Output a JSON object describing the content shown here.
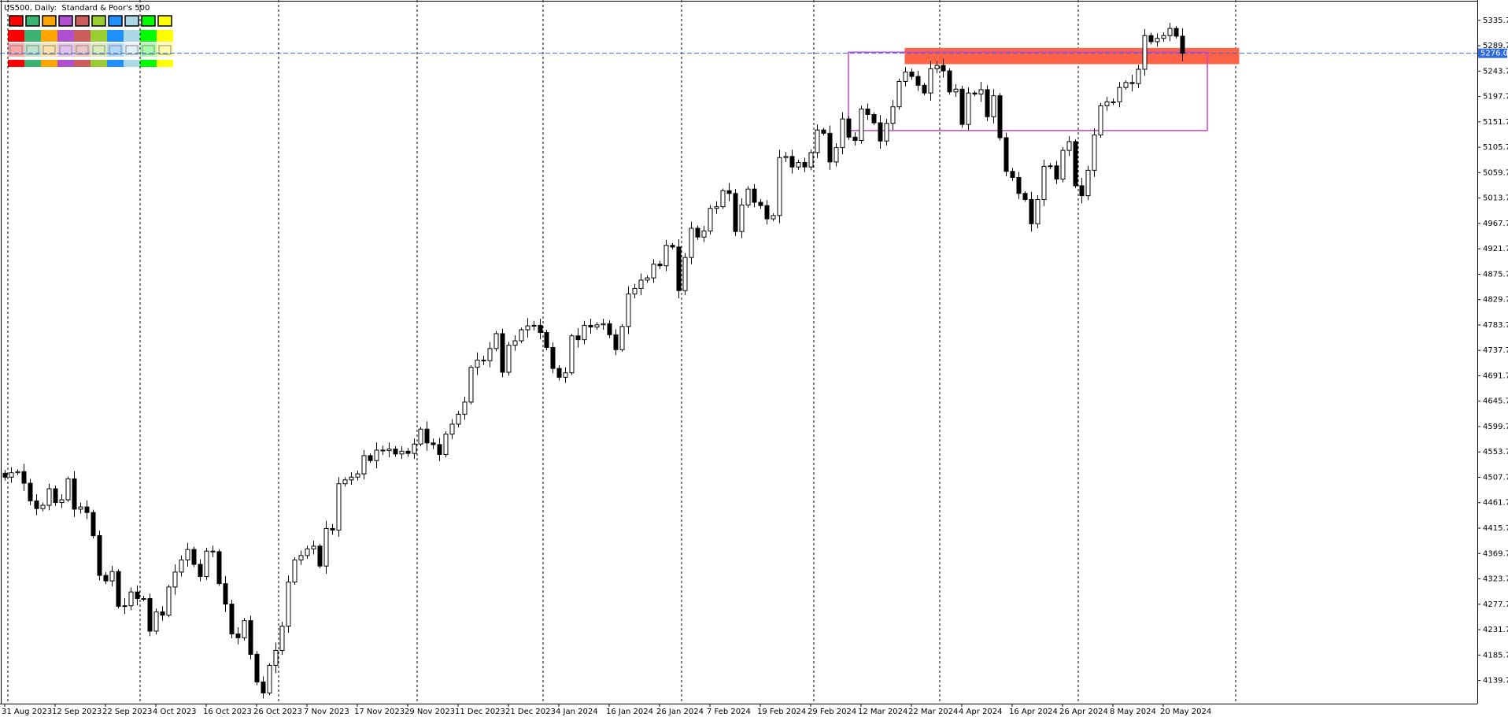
{
  "chart_data": {
    "type": "candlestick",
    "title": "US500, Daily:  Standard & Poor's 500",
    "categories": [
      "31 Aug 2023",
      null,
      null,
      null,
      null,
      null,
      null,
      null,
      "12 Sep 2023",
      null,
      null,
      null,
      null,
      null,
      null,
      null,
      "22 Sep 2023",
      null,
      null,
      null,
      null,
      null,
      null,
      null,
      "4 Oct 2023",
      null,
      null,
      null,
      null,
      null,
      null,
      null,
      "16 Oct 2023",
      null,
      null,
      null,
      null,
      null,
      null,
      null,
      "26 Oct 2023",
      null,
      null,
      null,
      null,
      null,
      null,
      null,
      "7 Nov 2023",
      null,
      null,
      null,
      null,
      null,
      null,
      null,
      "17 Nov 2023",
      null,
      null,
      null,
      null,
      null,
      null,
      null,
      "29 Nov 2023",
      null,
      null,
      null,
      null,
      null,
      null,
      null,
      "11 Dec 2023",
      null,
      null,
      null,
      null,
      null,
      null,
      null,
      "21 Dec 2023",
      null,
      null,
      null,
      null,
      null,
      null,
      null,
      "4 Jan 2024",
      null,
      null,
      null,
      null,
      null,
      null,
      null,
      "16 Jan 2024",
      null,
      null,
      null,
      null,
      null,
      null,
      null,
      "26 Jan 2024",
      null,
      null,
      null,
      null,
      null,
      null,
      null,
      "7 Feb 2024",
      null,
      null,
      null,
      null,
      null,
      null,
      null,
      "19 Feb 2024",
      null,
      null,
      null,
      null,
      null,
      null,
      null,
      "29 Feb 2024",
      null,
      null,
      null,
      null,
      null,
      null,
      null,
      "12 Mar 2024",
      null,
      null,
      null,
      null,
      null,
      null,
      null,
      "22 Mar 2024",
      null,
      null,
      null,
      null,
      null,
      null,
      null,
      "4 Apr 2024",
      null,
      null,
      null,
      null,
      null,
      null,
      null,
      "16 Apr 2024",
      null,
      null,
      null,
      null,
      null,
      null,
      null,
      "26 Apr 2024",
      null,
      null,
      null,
      null,
      null,
      null,
      null,
      "8 May 2024",
      null,
      null,
      null,
      null,
      null,
      null,
      null,
      "20 May 2024",
      null,
      null,
      null
    ],
    "open": [
      4515,
      4508,
      4516,
      4518,
      4497,
      4465,
      4451,
      4457,
      4487,
      4462,
      4467,
      4505,
      4450,
      4454,
      4444,
      4402,
      4330,
      4320,
      4337,
      4274,
      4275,
      4300,
      4288,
      4288,
      4229,
      4264,
      4258,
      4309,
      4336,
      4358,
      4377,
      4350,
      4328,
      4374,
      4373,
      4315,
      4278,
      4224,
      4217,
      4248,
      4187,
      4137,
      4117,
      4167,
      4194,
      4238,
      4318,
      4358,
      4366,
      4378,
      4383,
      4347,
      4415,
      4412,
      4496,
      4503,
      4508,
      4514,
      4547,
      4538,
      4557,
      4556,
      4559,
      4550,
      4555,
      4551,
      4568,
      4595,
      4570,
      4567,
      4549,
      4586,
      4604,
      4622,
      4644,
      4707,
      4720,
      4719,
      4741,
      4768,
      4698,
      4747,
      4755,
      4775,
      4782,
      4783,
      4770,
      4743,
      4705,
      4689,
      4697,
      4764,
      4757,
      4783,
      4780,
      4784,
      4786,
      4766,
      4739,
      4781,
      4840,
      4850,
      4865,
      4869,
      4894,
      4891,
      4928,
      4925,
      4846,
      4906,
      4959,
      4943,
      4954,
      4995,
      4998,
      5027,
      5022,
      4953,
      5001,
      5030,
      5006,
      5000,
      4976,
      4982,
      5087,
      5089,
      5070,
      5078,
      5070,
      5096,
      5137,
      5131,
      5079,
      5105,
      5157,
      5124,
      5118,
      5175,
      5165,
      5150,
      5117,
      5149,
      5179,
      5225,
      5242,
      5234,
      5218,
      5204,
      5248,
      5254,
      5244,
      5206,
      5211,
      5147,
      5204,
      5202,
      5210,
      5161,
      5199,
      5123,
      5062,
      5051,
      5022,
      5011,
      4967,
      5011,
      5071,
      5072,
      5048,
      5100,
      5116,
      5036,
      5018,
      5064,
      5128,
      5181,
      5188,
      5188,
      5214,
      5223,
      5221,
      5247,
      5308,
      5297,
      5303,
      5308,
      5321,
      5307
    ],
    "high": [
      4521,
      4526,
      4522,
      4532,
      4505,
      4477,
      4462,
      4496,
      4493,
      4477,
      4509,
      4519,
      4462,
      4466,
      4449,
      4411,
      4336,
      4347,
      4341,
      4289,
      4308,
      4312,
      4293,
      4297,
      4270,
      4274,
      4313,
      4350,
      4366,
      4389,
      4382,
      4359,
      4380,
      4384,
      4377,
      4329,
      4286,
      4236,
      4253,
      4257,
      4193,
      4147,
      4171,
      4208,
      4246,
      4330,
      4363,
      4375,
      4384,
      4393,
      4387,
      4429,
      4423,
      4508,
      4508,
      4517,
      4520,
      4557,
      4551,
      4571,
      4565,
      4571,
      4564,
      4564,
      4561,
      4578,
      4599,
      4609,
      4578,
      4579,
      4591,
      4613,
      4628,
      4654,
      4711,
      4734,
      4728,
      4753,
      4773,
      4777,
      4753,
      4765,
      4779,
      4796,
      4791,
      4795,
      4775,
      4752,
      4711,
      4707,
      4768,
      4778,
      4791,
      4795,
      4789,
      4795,
      4792,
      4776,
      4785,
      4854,
      4858,
      4877,
      4874,
      4903,
      4900,
      4938,
      4932,
      4939,
      4914,
      4971,
      4964,
      4963,
      5001,
      5008,
      5031,
      5041,
      5030,
      5013,
      5035,
      5039,
      5012,
      5010,
      4986,
      5101,
      5097,
      5101,
      5083,
      5087,
      5102,
      5147,
      5141,
      5145,
      5113,
      5169,
      5162,
      5133,
      5181,
      5185,
      5169,
      5164,
      5157,
      5191,
      5230,
      5251,
      5248,
      5244,
      5222,
      5262,
      5262,
      5266,
      5249,
      5220,
      5217,
      5214,
      5208,
      5224,
      5218,
      5211,
      5204,
      5132,
      5068,
      5061,
      5026,
      5025,
      5019,
      5083,
      5077,
      5081,
      5106,
      5126,
      5120,
      5050,
      5072,
      5140,
      5186,
      5197,
      5194,
      5224,
      5227,
      5237,
      5255,
      5320,
      5313,
      5312,
      5314,
      5331,
      5325,
      5321
    ],
    "low": [
      4502,
      4498,
      4512,
      4483,
      4457,
      4439,
      4446,
      4448,
      4456,
      4452,
      4463,
      4436,
      4442,
      4432,
      4397,
      4321,
      4314,
      4310,
      4270,
      4260,
      4267,
      4276,
      4283,
      4220,
      4223,
      4248,
      4254,
      4295,
      4328,
      4346,
      4345,
      4319,
      4322,
      4363,
      4311,
      4264,
      4216,
      4205,
      4212,
      4178,
      4131,
      4107,
      4113,
      4153,
      4186,
      4226,
      4313,
      4349,
      4360,
      4368,
      4343,
      4333,
      4404,
      4400,
      4491,
      4494,
      4502,
      4504,
      4534,
      4524,
      4548,
      4544,
      4545,
      4541,
      4545,
      4541,
      4564,
      4556,
      4559,
      4537,
      4544,
      4577,
      4598,
      4612,
      4640,
      4693,
      4711,
      4707,
      4736,
      4689,
      4692,
      4737,
      4751,
      4761,
      4774,
      4758,
      4738,
      4696,
      4683,
      4679,
      4693,
      4743,
      4749,
      4768,
      4775,
      4775,
      4760,
      4729,
      4735,
      4767,
      4832,
      4838,
      4860,
      4860,
      4885,
      4881,
      4921,
      4832,
      4838,
      4894,
      4938,
      4934,
      4948,
      4985,
      4994,
      5008,
      4945,
      4941,
      4996,
      4997,
      4994,
      4966,
      4972,
      4968,
      5079,
      5058,
      5065,
      5061,
      5064,
      5086,
      5127,
      5065,
      5071,
      5093,
      5119,
      5109,
      5112,
      5155,
      5146,
      5103,
      5109,
      5137,
      5174,
      5216,
      5228,
      5208,
      5200,
      5190,
      5240,
      5232,
      5201,
      5197,
      5141,
      5137,
      5198,
      5188,
      5153,
      5149,
      5118,
      5053,
      5045,
      5012,
      5007,
      4953,
      4959,
      4999,
      5066,
      5039,
      5042,
      5090,
      5032,
      5004,
      5010,
      5052,
      5123,
      5172,
      5182,
      5178,
      5210,
      5207,
      5213,
      5235,
      5292,
      5288,
      5297,
      5298,
      5303,
      5262
    ],
    "close": [
      4508,
      4516,
      4518,
      4497,
      4465,
      4451,
      4457,
      4487,
      4462,
      4467,
      4505,
      4450,
      4454,
      4444,
      4402,
      4330,
      4320,
      4337,
      4274,
      4275,
      4300,
      4288,
      4288,
      4229,
      4264,
      4258,
      4309,
      4336,
      4358,
      4377,
      4350,
      4328,
      4374,
      4373,
      4315,
      4278,
      4224,
      4217,
      4248,
      4187,
      4137,
      4117,
      4167,
      4194,
      4238,
      4318,
      4358,
      4366,
      4378,
      4383,
      4347,
      4415,
      4412,
      4496,
      4503,
      4508,
      4514,
      4547,
      4538,
      4557,
      4556,
      4559,
      4550,
      4555,
      4551,
      4568,
      4595,
      4570,
      4567,
      4549,
      4586,
      4604,
      4622,
      4644,
      4707,
      4720,
      4719,
      4741,
      4768,
      4698,
      4747,
      4755,
      4775,
      4782,
      4783,
      4770,
      4743,
      4705,
      4689,
      4697,
      4764,
      4757,
      4783,
      4780,
      4784,
      4786,
      4766,
      4739,
      4781,
      4840,
      4850,
      4865,
      4869,
      4894,
      4891,
      4928,
      4925,
      4846,
      4906,
      4959,
      4943,
      4954,
      4995,
      4998,
      5027,
      5022,
      4953,
      5001,
      5030,
      5006,
      5000,
      4976,
      4982,
      5087,
      5089,
      5070,
      5078,
      5070,
      5096,
      5137,
      5131,
      5079,
      5105,
      5157,
      5124,
      5118,
      5175,
      5165,
      5150,
      5117,
      5149,
      5179,
      5225,
      5242,
      5234,
      5218,
      5204,
      5248,
      5254,
      5244,
      5206,
      5211,
      5147,
      5204,
      5202,
      5210,
      5161,
      5199,
      5123,
      5062,
      5051,
      5022,
      5011,
      4967,
      5011,
      5071,
      5072,
      5048,
      5100,
      5116,
      5036,
      5018,
      5064,
      5128,
      5181,
      5188,
      5188,
      5214,
      5223,
      5221,
      5247,
      5308,
      5297,
      5303,
      5308,
      5321,
      5307,
      5276
    ],
    "ylim": [
      4097.7,
      5372.5
    ],
    "yticks": [
      5335.7,
      5289.7,
      5243.7,
      5197.7,
      5151.7,
      5105.7,
      5059.7,
      5013.7,
      4967.7,
      4921.7,
      4875.7,
      4829.7,
      4783.7,
      4737.7,
      4691.7,
      4645.7,
      4599.7,
      4553.7,
      4507.7,
      4461.7,
      4415.7,
      4369.7,
      4323.7,
      4277.7,
      4231.7,
      4185.7,
      4139.7
    ],
    "grid": false,
    "up_color": "#ffffff",
    "down_color": "#000000",
    "current_price": {
      "value": 5276,
      "label": "5276.0",
      "color": "#2f6bd8"
    },
    "rectangles": [
      {
        "color": "#ff6347",
        "filled": true,
        "bar_from": 143,
        "bar_to": 196,
        "top": 5285,
        "bottom": 5257
      },
      {
        "color": "#cc44cc",
        "filled": false,
        "bar_from": 134,
        "bar_to": 191,
        "top": 5278,
        "bottom": 5136
      }
    ]
  }
}
